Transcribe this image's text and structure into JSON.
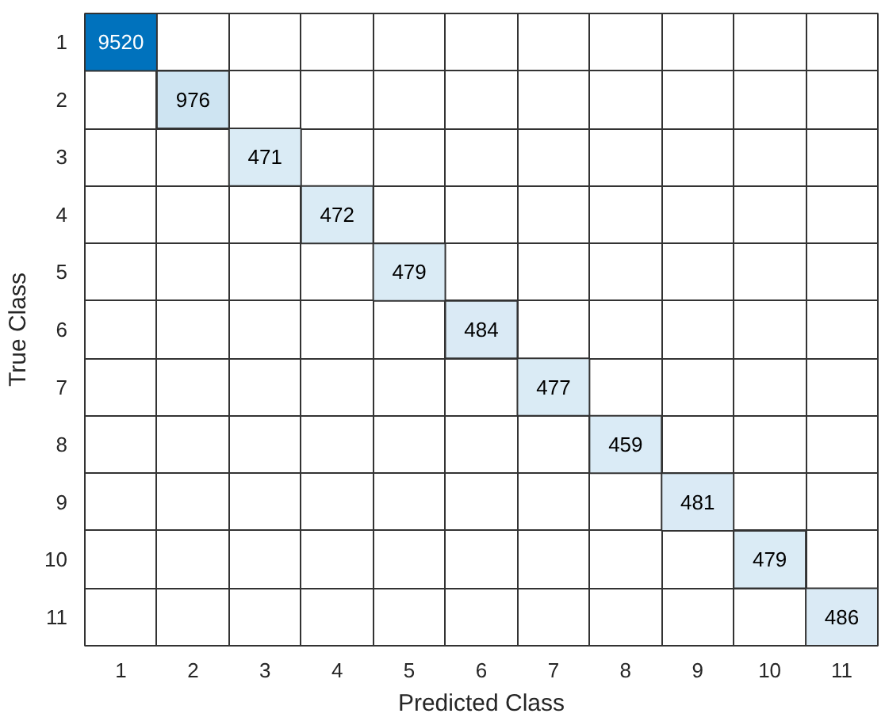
{
  "chart_data": {
    "type": "heatmap",
    "data_labels": true,
    "xlabel": "Predicted Class",
    "ylabel": "True Class",
    "categories": [
      "1",
      "2",
      "3",
      "4",
      "5",
      "6",
      "7",
      "8",
      "9",
      "10",
      "11"
    ],
    "y_categories": [
      "1",
      "2",
      "3",
      "4",
      "5",
      "6",
      "7",
      "8",
      "9",
      "10",
      "11"
    ],
    "cells": [
      [
        9520,
        null,
        null,
        null,
        null,
        null,
        null,
        null,
        null,
        null,
        null
      ],
      [
        null,
        976,
        null,
        null,
        null,
        null,
        null,
        null,
        null,
        null,
        null
      ],
      [
        null,
        null,
        471,
        null,
        null,
        null,
        null,
        null,
        null,
        null,
        null
      ],
      [
        null,
        null,
        null,
        472,
        null,
        null,
        null,
        null,
        null,
        null,
        null
      ],
      [
        null,
        null,
        null,
        null,
        479,
        null,
        null,
        null,
        null,
        null,
        null
      ],
      [
        null,
        null,
        null,
        null,
        null,
        484,
        null,
        null,
        null,
        null,
        null
      ],
      [
        null,
        null,
        null,
        null,
        null,
        null,
        477,
        null,
        null,
        null,
        null
      ],
      [
        null,
        null,
        null,
        null,
        null,
        null,
        null,
        459,
        null,
        null,
        null
      ],
      [
        null,
        null,
        null,
        null,
        null,
        null,
        null,
        null,
        481,
        null,
        null
      ],
      [
        null,
        null,
        null,
        null,
        null,
        null,
        null,
        null,
        null,
        479,
        null
      ],
      [
        null,
        null,
        null,
        null,
        null,
        null,
        null,
        null,
        null,
        null,
        486
      ]
    ]
  }
}
